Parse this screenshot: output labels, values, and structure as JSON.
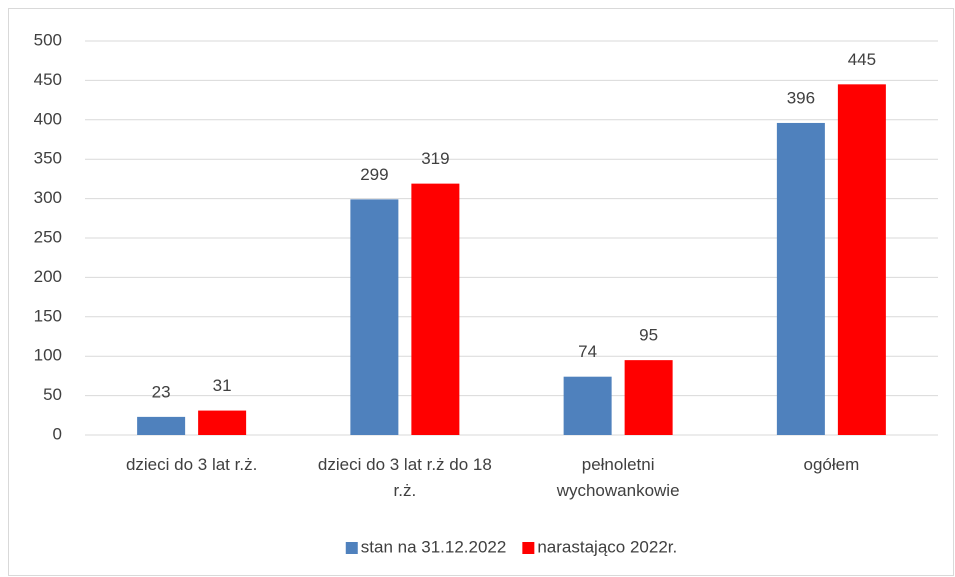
{
  "chart_data": {
    "type": "bar",
    "categories": [
      "dzieci do 3 lat r.ż.",
      "dzieci do 3 lat r.ż do 18 r.ż.",
      "pełnoletni wychowankowie",
      "ogółem"
    ],
    "series": [
      {
        "name": "stan na 31.12.2022",
        "color": "#4f81bd",
        "values": [
          23,
          299,
          74,
          396
        ]
      },
      {
        "name": "narastająco 2022r.",
        "color": "#ff0000",
        "values": [
          31,
          319,
          95,
          445
        ]
      }
    ],
    "ylim": [
      0,
      500
    ],
    "yticks": [
      0,
      50,
      100,
      150,
      200,
      250,
      300,
      350,
      400,
      450,
      500
    ],
    "grid": true,
    "legend": "bottom"
  }
}
